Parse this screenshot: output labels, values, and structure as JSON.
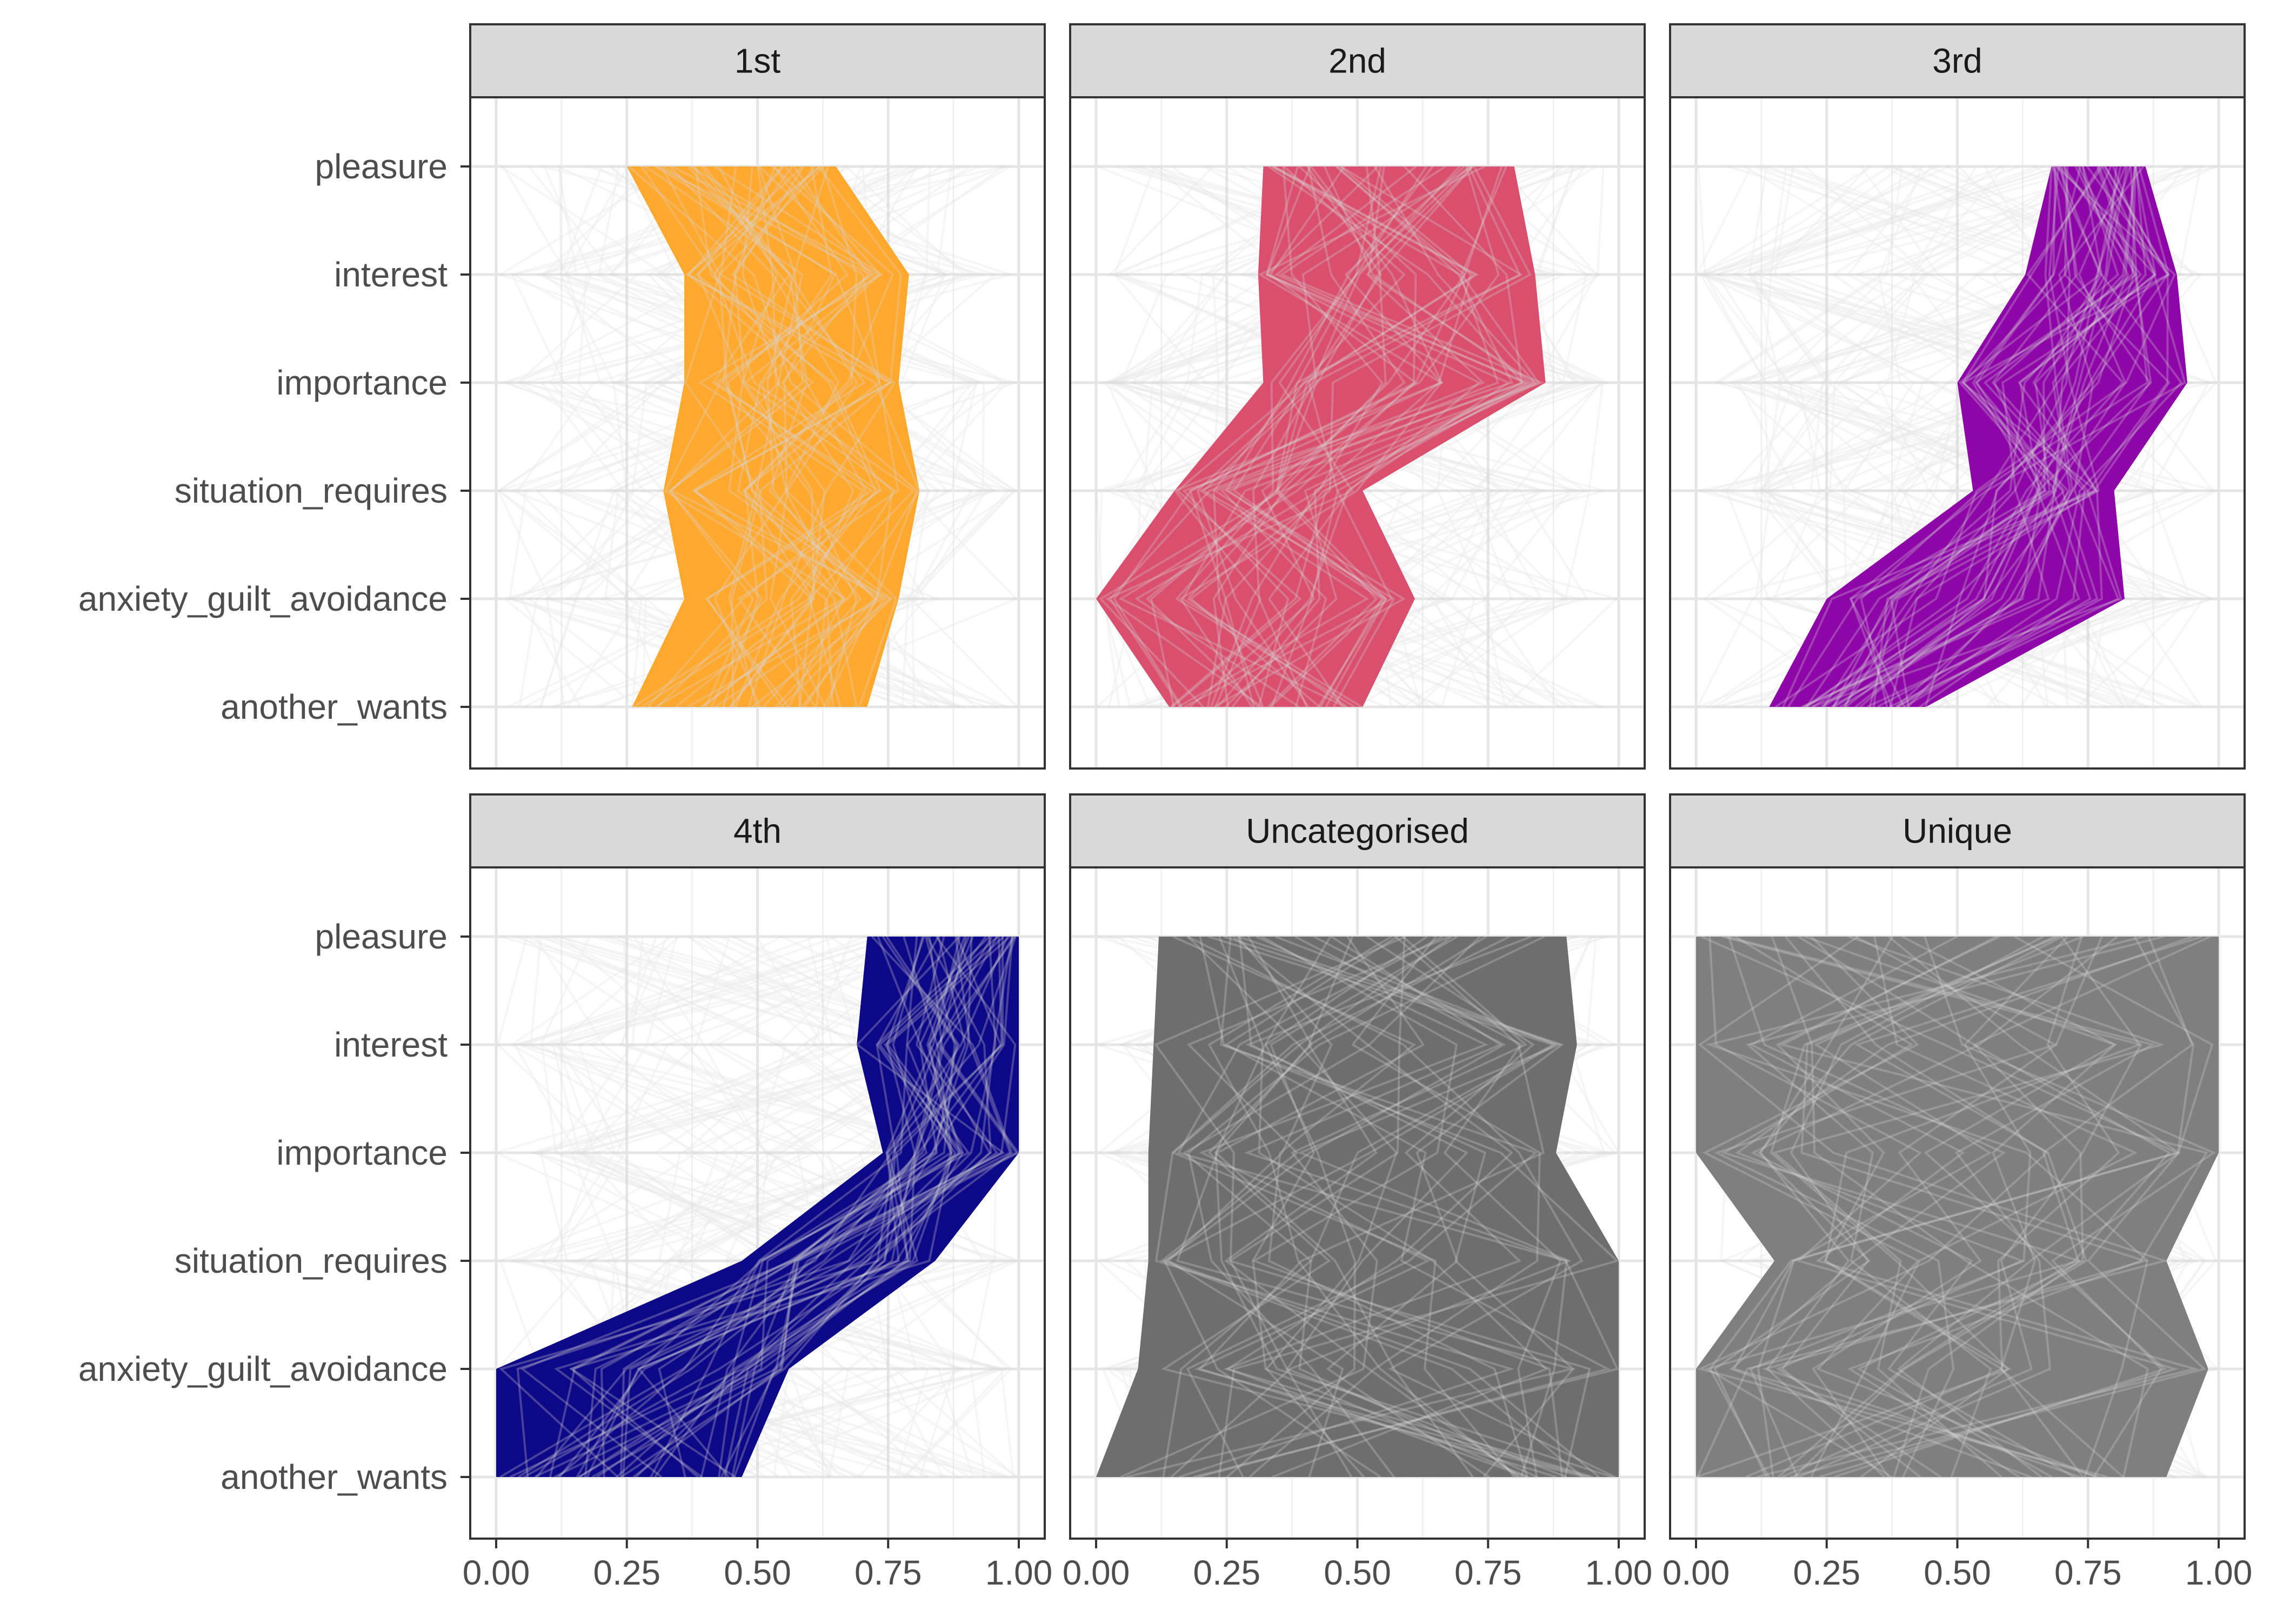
{
  "chart_data": {
    "type": "area",
    "layout": "2x3 facets, parallel coordinates with shaded range band per panel",
    "y_categories": [
      "pleasure",
      "interest",
      "importance",
      "situation_requires",
      "anxiety_guilt_avoidance",
      "another_wants"
    ],
    "x_ticks": [
      "0.00",
      "0.25",
      "0.50",
      "0.75",
      "1.00"
    ],
    "xlim": [
      0,
      1
    ],
    "grid": true,
    "background_lines_color": "#d3d3d3",
    "panels": [
      {
        "title": "1st",
        "color": "#ffa82e",
        "band_min": [
          0.25,
          0.36,
          0.36,
          0.32,
          0.36,
          0.26
        ],
        "band_max": [
          0.65,
          0.79,
          0.77,
          0.81,
          0.77,
          0.71
        ]
      },
      {
        "title": "2nd",
        "color": "#d94f6d",
        "band_min": [
          0.32,
          0.31,
          0.32,
          0.15,
          0.0,
          0.14
        ],
        "band_max": [
          0.8,
          0.84,
          0.86,
          0.51,
          0.61,
          0.51
        ]
      },
      {
        "title": "3rd",
        "color": "#8e05a8",
        "band_min": [
          0.68,
          0.63,
          0.5,
          0.53,
          0.25,
          0.14
        ],
        "band_max": [
          0.86,
          0.92,
          0.94,
          0.8,
          0.82,
          0.44
        ]
      },
      {
        "title": "4th",
        "color": "#0d0887",
        "band_min": [
          0.71,
          0.69,
          0.74,
          0.47,
          0.0,
          0.0
        ],
        "band_max": [
          1.0,
          1.0,
          1.0,
          0.84,
          0.56,
          0.47
        ]
      },
      {
        "title": "Uncategorised",
        "color": "#6e6e6e",
        "band_min": [
          0.12,
          0.11,
          0.1,
          0.1,
          0.08,
          0.0
        ],
        "band_max": [
          0.9,
          0.92,
          0.88,
          1.0,
          1.0,
          1.0
        ]
      },
      {
        "title": "Unique",
        "color": "#7f7f7f",
        "band_min": [
          0.0,
          0.0,
          0.0,
          0.15,
          0.0,
          0.0
        ],
        "band_max": [
          1.0,
          1.0,
          1.0,
          0.9,
          0.98,
          0.9
        ]
      }
    ]
  }
}
